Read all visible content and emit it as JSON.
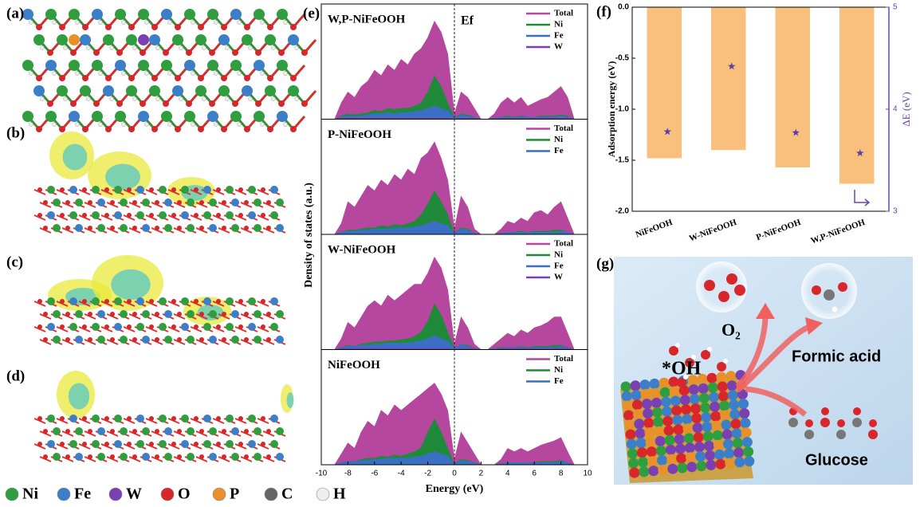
{
  "panel_labels": [
    "(a)",
    "(b)",
    "(c)",
    "(d)",
    "(e)",
    "(f)",
    "(g)"
  ],
  "element_legend": [
    {
      "name": "Ni",
      "color": "#2e9e3e"
    },
    {
      "name": "Fe",
      "color": "#3a7fc8"
    },
    {
      "name": "W",
      "color": "#7a3fb0"
    },
    {
      "name": "O",
      "color": "#d9262a"
    },
    {
      "name": "P",
      "color": "#e8912a"
    },
    {
      "name": "C",
      "color": "#666666"
    },
    {
      "name": "H",
      "color": "#eeeeee"
    }
  ],
  "scheme": {
    "oh": "*OH",
    "o2": "O₂",
    "formic_acid": "Formic acid",
    "glucose": "Glucose"
  },
  "chart_data": [
    {
      "type": "area",
      "title": "W,P-NiFeOOH",
      "y_label": "Density of states (a.u.)",
      "annotation": "Ef",
      "xlim": [
        -10,
        10
      ],
      "ylim": [
        0,
        1
      ],
      "x": [
        -9,
        -8.5,
        -8,
        -7.5,
        -7,
        -6.5,
        -6,
        -5.5,
        -5,
        -4.5,
        -4,
        -3.5,
        -3,
        -2.5,
        -2,
        -1.5,
        -1,
        -0.5,
        0,
        0.5,
        1,
        1.5,
        2,
        2.5,
        3,
        3.5,
        4,
        4.5,
        5,
        5.5,
        6,
        6.5,
        7,
        7.5,
        8,
        8.5,
        9
      ],
      "series": [
        {
          "name": "Total",
          "color": "#b5479f",
          "values": [
            0,
            0.15,
            0.25,
            0.2,
            0.3,
            0.35,
            0.45,
            0.4,
            0.5,
            0.45,
            0.55,
            0.5,
            0.6,
            0.65,
            0.75,
            0.9,
            0.8,
            0.6,
            0.05,
            0.25,
            0.2,
            0.1,
            0,
            0,
            0.05,
            0.15,
            0.2,
            0.15,
            0.2,
            0.12,
            0.15,
            0.18,
            0.2,
            0.25,
            0.3,
            0.2,
            0
          ]
        },
        {
          "name": "Ni",
          "color": "#1f8a3a",
          "values": [
            0,
            0.03,
            0.05,
            0.04,
            0.05,
            0.06,
            0.08,
            0.07,
            0.1,
            0.09,
            0.1,
            0.1,
            0.12,
            0.15,
            0.25,
            0.4,
            0.3,
            0.15,
            0.01,
            0.05,
            0.04,
            0.02,
            0,
            0,
            0.01,
            0.02,
            0.03,
            0.02,
            0.03,
            0.02,
            0.02,
            0.03,
            0.03,
            0.03,
            0.04,
            0.03,
            0
          ]
        },
        {
          "name": "Fe",
          "color": "#3a6fc4",
          "values": [
            0,
            0.02,
            0.03,
            0.03,
            0.03,
            0.04,
            0.05,
            0.05,
            0.06,
            0.05,
            0.06,
            0.06,
            0.07,
            0.08,
            0.1,
            0.12,
            0.1,
            0.08,
            0.01,
            0.04,
            0.03,
            0.02,
            0,
            0,
            0.01,
            0.02,
            0.02,
            0.02,
            0.02,
            0.02,
            0.02,
            0.02,
            0.02,
            0.02,
            0.03,
            0.02,
            0
          ]
        },
        {
          "name": "W",
          "color": "#7b3fb5",
          "values": [
            0,
            0.01,
            0.01,
            0.01,
            0.01,
            0.01,
            0.01,
            0.01,
            0.01,
            0.01,
            0.01,
            0.01,
            0.01,
            0.01,
            0.01,
            0.01,
            0.01,
            0.01,
            0,
            0.01,
            0.01,
            0.01,
            0,
            0,
            0,
            0.01,
            0.01,
            0.01,
            0.01,
            0.01,
            0.01,
            0.01,
            0.01,
            0.01,
            0.01,
            0.01,
            0
          ]
        }
      ]
    },
    {
      "type": "area",
      "title": "P-NiFeOOH",
      "xlim": [
        -10,
        10
      ],
      "ylim": [
        0,
        1
      ],
      "x": [
        -9,
        -8.5,
        -8,
        -7.5,
        -7,
        -6.5,
        -6,
        -5.5,
        -5,
        -4.5,
        -4,
        -3.5,
        -3,
        -2.5,
        -2,
        -1.5,
        -1,
        -0.5,
        0,
        0.5,
        1,
        1.5,
        2,
        2.5,
        3,
        3.5,
        4,
        4.5,
        5,
        5.5,
        6,
        6.5,
        7,
        7.5,
        8,
        8.5,
        9
      ],
      "series": [
        {
          "name": "Total",
          "color": "#b5479f",
          "values": [
            0,
            0.1,
            0.3,
            0.25,
            0.35,
            0.45,
            0.4,
            0.5,
            0.45,
            0.55,
            0.5,
            0.6,
            0.55,
            0.7,
            0.75,
            0.85,
            0.7,
            0.5,
            0.05,
            0.35,
            0.25,
            0.05,
            0,
            0,
            0,
            0.05,
            0.12,
            0.1,
            0.15,
            0.12,
            0.2,
            0.22,
            0.18,
            0.25,
            0.3,
            0.15,
            0
          ]
        },
        {
          "name": "Ni",
          "color": "#1f8a3a",
          "values": [
            0,
            0.02,
            0.04,
            0.04,
            0.05,
            0.06,
            0.06,
            0.08,
            0.07,
            0.09,
            0.08,
            0.1,
            0.12,
            0.18,
            0.28,
            0.4,
            0.3,
            0.18,
            0.01,
            0.06,
            0.05,
            0.01,
            0,
            0,
            0,
            0.01,
            0.02,
            0.02,
            0.03,
            0.02,
            0.03,
            0.03,
            0.03,
            0.04,
            0.04,
            0.02,
            0
          ]
        },
        {
          "name": "Fe",
          "color": "#3a6fc4",
          "values": [
            0,
            0.02,
            0.03,
            0.03,
            0.04,
            0.04,
            0.05,
            0.05,
            0.05,
            0.06,
            0.06,
            0.06,
            0.07,
            0.08,
            0.1,
            0.12,
            0.1,
            0.08,
            0.01,
            0.05,
            0.04,
            0.01,
            0,
            0,
            0,
            0.01,
            0.02,
            0.02,
            0.02,
            0.02,
            0.02,
            0.02,
            0.02,
            0.02,
            0.03,
            0.02,
            0
          ]
        }
      ]
    },
    {
      "type": "area",
      "title": "W-NiFeOOH",
      "xlim": [
        -10,
        10
      ],
      "ylim": [
        0,
        1
      ],
      "x": [
        -9,
        -8.5,
        -8,
        -7.5,
        -7,
        -6.5,
        -6,
        -5.5,
        -5,
        -4.5,
        -4,
        -3.5,
        -3,
        -2.5,
        -2,
        -1.5,
        -1,
        -0.5,
        0,
        0.5,
        1,
        1.5,
        2,
        2.5,
        3,
        3.5,
        4,
        4.5,
        5,
        5.5,
        6,
        6.5,
        7,
        7.5,
        8,
        8.5,
        9
      ],
      "series": [
        {
          "name": "Total",
          "color": "#b5479f",
          "values": [
            0,
            0.1,
            0.25,
            0.2,
            0.3,
            0.4,
            0.45,
            0.4,
            0.5,
            0.45,
            0.5,
            0.55,
            0.6,
            0.6,
            0.7,
            0.85,
            0.75,
            0.55,
            0.05,
            0.3,
            0.2,
            0.05,
            0,
            0,
            0.05,
            0.1,
            0.15,
            0.12,
            0.18,
            0.15,
            0.2,
            0.22,
            0.25,
            0.3,
            0.3,
            0.15,
            0
          ]
        },
        {
          "name": "Ni",
          "color": "#1f8a3a",
          "values": [
            0,
            0.02,
            0.04,
            0.03,
            0.05,
            0.06,
            0.07,
            0.07,
            0.08,
            0.08,
            0.09,
            0.1,
            0.12,
            0.16,
            0.26,
            0.42,
            0.32,
            0.16,
            0.01,
            0.05,
            0.04,
            0.01,
            0,
            0,
            0.01,
            0.02,
            0.02,
            0.02,
            0.03,
            0.02,
            0.03,
            0.03,
            0.03,
            0.04,
            0.04,
            0.02,
            0
          ]
        },
        {
          "name": "Fe",
          "color": "#3a6fc4",
          "values": [
            0,
            0.02,
            0.03,
            0.03,
            0.04,
            0.04,
            0.05,
            0.05,
            0.06,
            0.06,
            0.06,
            0.06,
            0.07,
            0.08,
            0.1,
            0.13,
            0.1,
            0.08,
            0.01,
            0.05,
            0.03,
            0.01,
            0,
            0,
            0.01,
            0.01,
            0.02,
            0.02,
            0.02,
            0.02,
            0.02,
            0.02,
            0.02,
            0.02,
            0.03,
            0.02,
            0
          ]
        },
        {
          "name": "W",
          "color": "#7b3fb5",
          "values": [
            0,
            0.01,
            0.01,
            0.01,
            0.01,
            0.01,
            0.01,
            0.01,
            0.01,
            0.01,
            0.01,
            0.01,
            0.01,
            0.01,
            0.01,
            0.01,
            0.01,
            0.01,
            0,
            0.01,
            0.01,
            0.01,
            0,
            0,
            0,
            0.01,
            0.01,
            0.01,
            0.01,
            0.01,
            0.01,
            0.01,
            0.01,
            0.01,
            0.01,
            0.01,
            0
          ]
        }
      ]
    },
    {
      "type": "area",
      "title": "NiFeOOH",
      "x_label": "Energy (eV)",
      "xlim": [
        -10,
        10
      ],
      "xticks": [
        -10,
        -8,
        -6,
        -4,
        -2,
        0,
        2,
        4,
        6,
        8,
        10
      ],
      "ylim": [
        0,
        1
      ],
      "x": [
        -9,
        -8.5,
        -8,
        -7.5,
        -7,
        -6.5,
        -6,
        -5.5,
        -5,
        -4.5,
        -4,
        -3.5,
        -3,
        -2.5,
        -2,
        -1.5,
        -1,
        -0.5,
        0,
        0.5,
        1,
        1.5,
        2,
        2.5,
        3,
        3.5,
        4,
        4.5,
        5,
        5.5,
        6,
        6.5,
        7,
        7.5,
        8,
        8.5,
        9
      ],
      "series": [
        {
          "name": "Total",
          "color": "#b5479f",
          "values": [
            0,
            0.1,
            0.2,
            0.15,
            0.3,
            0.4,
            0.35,
            0.5,
            0.45,
            0.55,
            0.5,
            0.55,
            0.6,
            0.65,
            0.7,
            0.75,
            0.65,
            0.5,
            0.05,
            0.3,
            0.2,
            0.1,
            0,
            0,
            0,
            0.05,
            0.15,
            0.12,
            0.15,
            0.12,
            0.15,
            0.18,
            0.2,
            0.22,
            0.25,
            0.12,
            0
          ]
        },
        {
          "name": "Ni",
          "color": "#1f8a3a",
          "values": [
            0,
            0.02,
            0.03,
            0.03,
            0.05,
            0.06,
            0.06,
            0.08,
            0.07,
            0.09,
            0.08,
            0.1,
            0.12,
            0.16,
            0.3,
            0.42,
            0.3,
            0.15,
            0.01,
            0.05,
            0.04,
            0.02,
            0,
            0,
            0,
            0.01,
            0.02,
            0.02,
            0.02,
            0.02,
            0.02,
            0.03,
            0.03,
            0.03,
            0.04,
            0.02,
            0
          ]
        },
        {
          "name": "Fe",
          "color": "#3a6fc4",
          "values": [
            0,
            0.02,
            0.03,
            0.03,
            0.04,
            0.04,
            0.05,
            0.05,
            0.06,
            0.06,
            0.06,
            0.06,
            0.07,
            0.08,
            0.1,
            0.12,
            0.1,
            0.08,
            0.01,
            0.04,
            0.03,
            0.02,
            0,
            0,
            0,
            0.01,
            0.02,
            0.02,
            0.02,
            0.02,
            0.02,
            0.02,
            0.02,
            0.02,
            0.03,
            0.02,
            0
          ]
        }
      ]
    },
    {
      "type": "bar",
      "y_label": "Adsorption energy (eV)",
      "y2_label": "ΔE (eV)",
      "categories": [
        "NiFeOOH",
        "W-NiFeOOH",
        "P-NiFeOOH",
        "W,P-NiFeOOH"
      ],
      "ylim": [
        -2.0,
        0.0
      ],
      "yticks": [
        {
          "value": 0,
          "label": "0.0"
        },
        -0.5,
        {
          "value": -1,
          "label": "-1.0"
        },
        -1.5,
        {
          "value": -2,
          "label": "-2.0"
        }
      ],
      "y2lim": [
        3,
        5
      ],
      "y2ticks": [
        3,
        4,
        5
      ],
      "y2_color": "#6a45b0",
      "series": [
        {
          "color": "#f9bf7c",
          "values": [
            -1.48,
            -1.4,
            -1.57,
            -1.73
          ]
        },
        {
          "color": "#5a3fa6",
          "axis": "y2",
          "marker": "star",
          "values": [
            3.78,
            4.42,
            3.77,
            3.57
          ]
        }
      ]
    }
  ]
}
